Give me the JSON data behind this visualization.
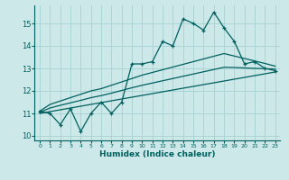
{
  "title": "",
  "xlabel": "Humidex (Indice chaleur)",
  "x_ticks": [
    0,
    1,
    2,
    3,
    4,
    5,
    6,
    7,
    8,
    9,
    10,
    11,
    12,
    13,
    14,
    15,
    16,
    17,
    18,
    19,
    20,
    21,
    22,
    23
  ],
  "ylim": [
    9.8,
    15.8
  ],
  "xlim": [
    -0.5,
    23.5
  ],
  "yticks": [
    10,
    11,
    12,
    13,
    14,
    15
  ],
  "bg_color": "#cce8e8",
  "grid_color": "#aad4d4",
  "line_color": "#006060",
  "main_data": [
    11.1,
    11.0,
    10.5,
    11.2,
    10.2,
    11.0,
    11.5,
    11.0,
    11.5,
    13.2,
    13.2,
    13.3,
    14.2,
    14.0,
    15.2,
    15.0,
    14.7,
    15.5,
    14.8,
    14.2,
    13.2,
    13.3,
    13.0,
    12.9
  ],
  "upper_line": [
    11.1,
    11.4,
    11.55,
    11.7,
    11.85,
    12.0,
    12.1,
    12.25,
    12.4,
    12.55,
    12.7,
    12.82,
    12.94,
    13.06,
    13.18,
    13.3,
    13.42,
    13.54,
    13.66,
    13.55,
    13.44,
    13.33,
    13.22,
    13.1
  ],
  "lower_line": [
    11.0,
    11.08,
    11.16,
    11.24,
    11.32,
    11.4,
    11.48,
    11.56,
    11.64,
    11.72,
    11.8,
    11.88,
    11.96,
    12.04,
    12.12,
    12.2,
    12.28,
    12.36,
    12.44,
    12.52,
    12.6,
    12.68,
    12.76,
    12.84
  ],
  "mid_line": [
    11.05,
    11.24,
    11.36,
    11.47,
    11.58,
    11.7,
    11.79,
    11.9,
    12.02,
    12.14,
    12.25,
    12.35,
    12.45,
    12.55,
    12.65,
    12.75,
    12.85,
    12.95,
    13.05,
    13.04,
    13.02,
    13.0,
    12.99,
    12.97
  ]
}
